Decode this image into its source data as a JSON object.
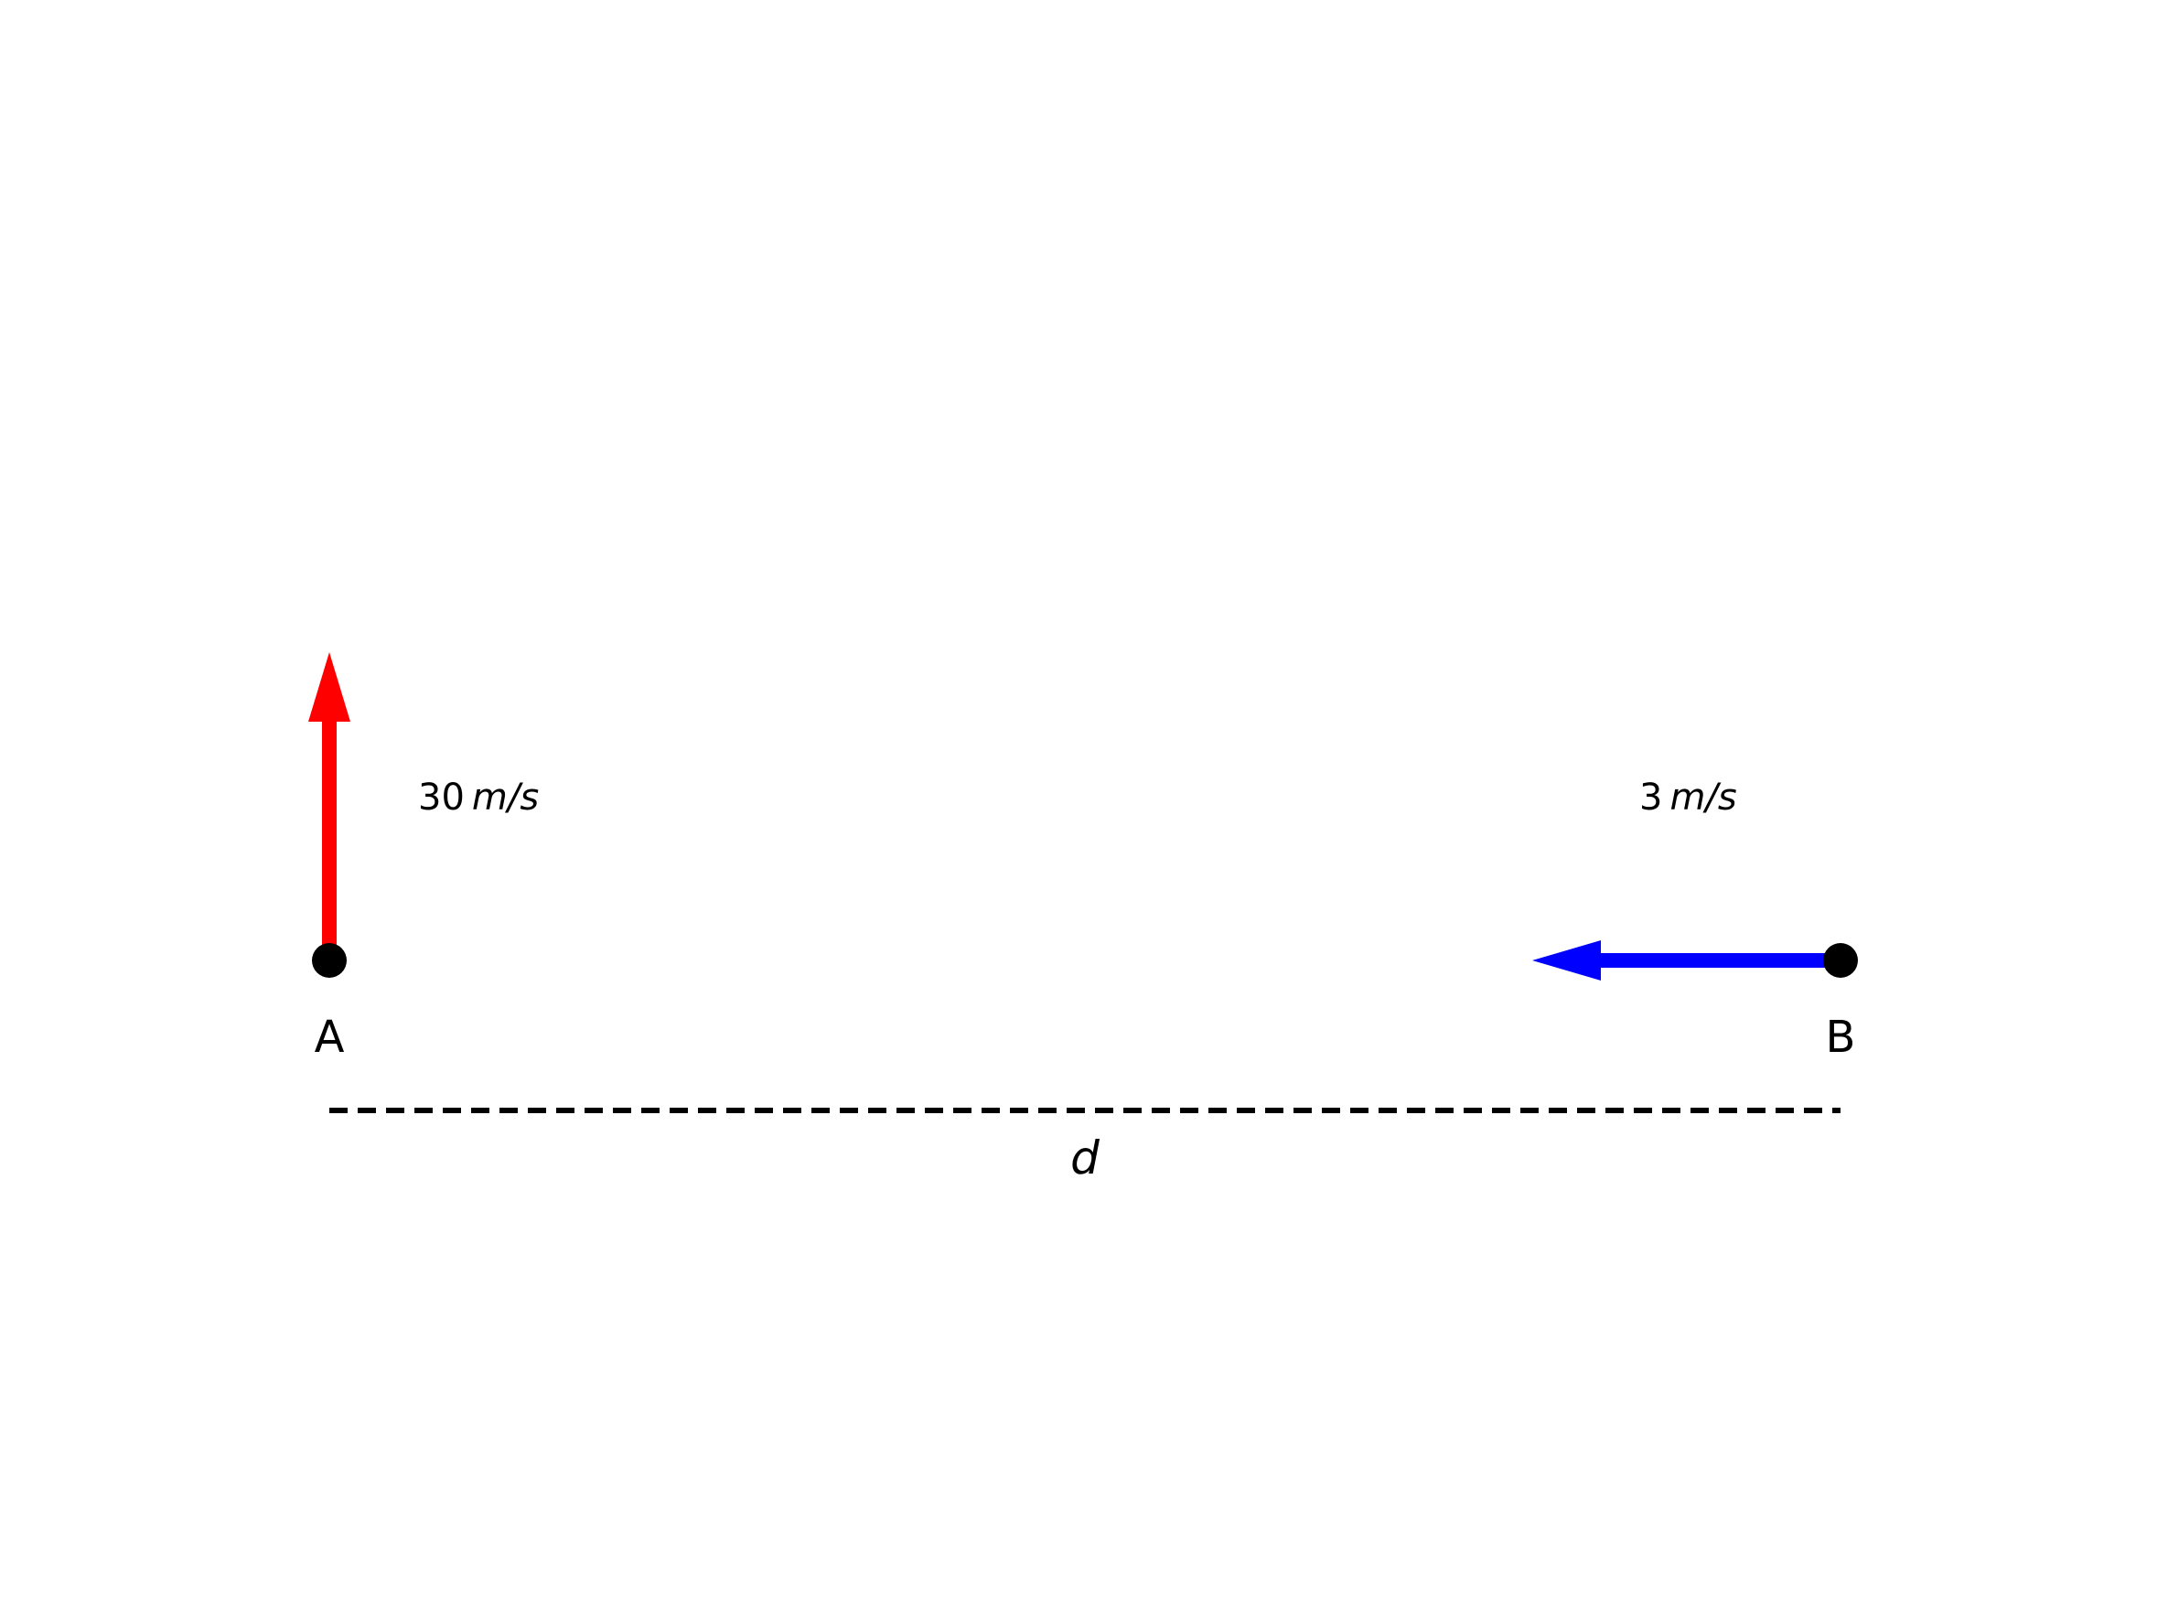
{
  "diagram": {
    "point_a": {
      "label": "A",
      "color": "#000000"
    },
    "point_b": {
      "label": "B",
      "color": "#000000"
    },
    "velocity_a": {
      "value": "30",
      "unit": "m/s",
      "direction": "up",
      "color": "#ff0000"
    },
    "velocity_b": {
      "value": "3",
      "unit": "m/s",
      "direction": "left",
      "color": "#0000ff"
    },
    "distance": {
      "label": "d",
      "line_color": "#000000"
    }
  }
}
